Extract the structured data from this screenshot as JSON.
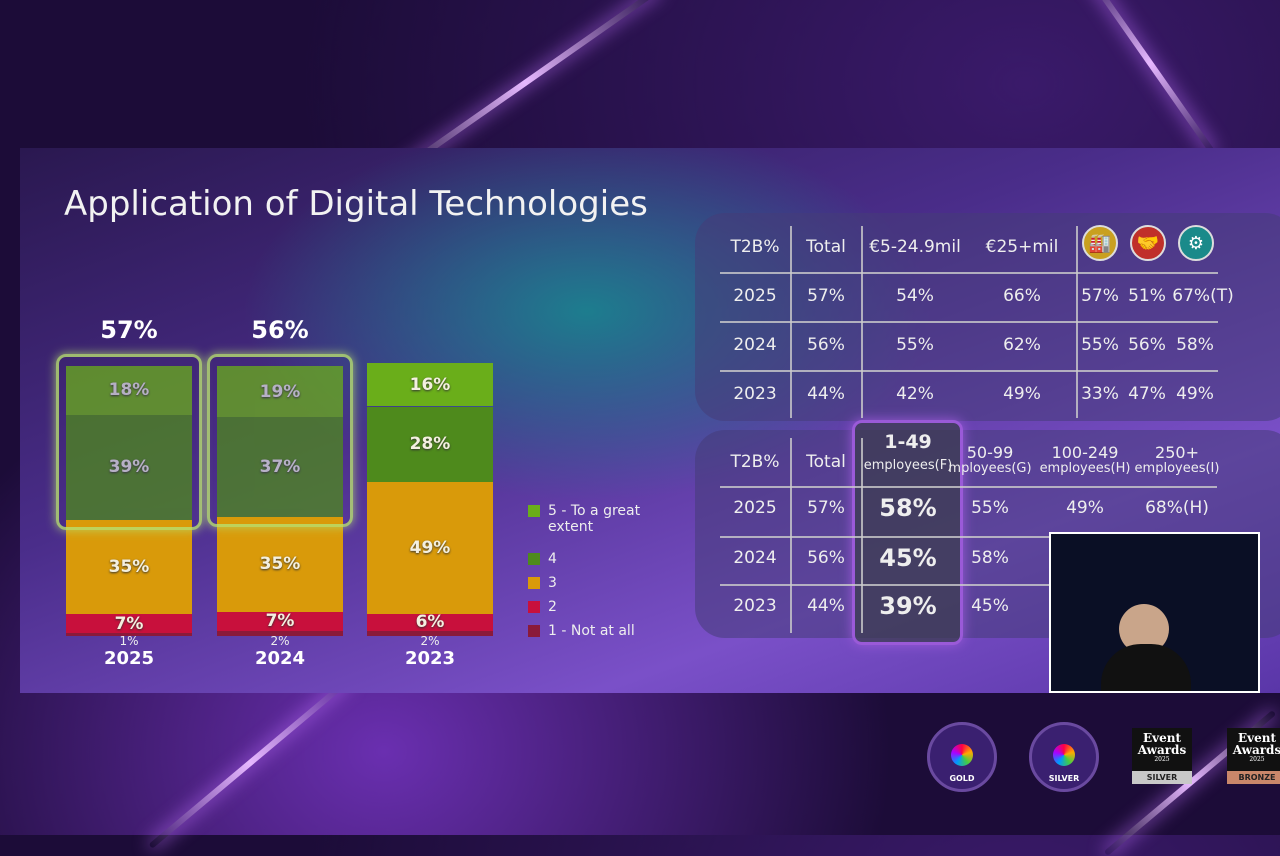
{
  "slide": {
    "title": "Application of Digital Technologies"
  },
  "chart_data": {
    "type": "bar",
    "stacked": true,
    "categories": [
      "2025",
      "2024",
      "2023"
    ],
    "series": [
      {
        "name": "1 - Not at all",
        "color": "#8a1a3a",
        "values": [
          1,
          2,
          2
        ]
      },
      {
        "name": "2",
        "color": "#c8103c",
        "values": [
          7,
          7,
          6
        ]
      },
      {
        "name": "3",
        "color": "#d99a0a",
        "values": [
          35,
          35,
          49
        ]
      },
      {
        "name": "4",
        "color": "#4e8a1c",
        "values": [
          39,
          37,
          28
        ]
      },
      {
        "name": "5 - To a great extent",
        "color": "#6aae1a",
        "values": [
          18,
          19,
          16
        ]
      }
    ],
    "value_labels": [
      [
        "1%",
        "7%",
        "35%",
        "39%",
        "18%"
      ],
      [
        "2%",
        "7%",
        "35%",
        "37%",
        "19%"
      ],
      [
        "2%",
        "6%",
        "49%",
        "28%",
        "16%"
      ]
    ],
    "top2box_labels": [
      "57%",
      "56%",
      ""
    ],
    "legend_order": [
      4,
      3,
      2,
      1,
      0
    ],
    "legend": "right"
  },
  "table1": {
    "headers": [
      "T2B%",
      "Total",
      "€5-24.9mil",
      "€25+mil"
    ],
    "icons": [
      "factory-icon",
      "handshake-icon",
      "service-gear-hand-icon"
    ],
    "rows": [
      [
        "2025",
        "57%",
        "54%",
        "66%",
        "57%",
        "51%",
        "67%(T)"
      ],
      [
        "2024",
        "56%",
        "55%",
        "62%",
        "55%",
        "56%",
        "58%"
      ],
      [
        "2023",
        "44%",
        "42%",
        "49%",
        "33%",
        "47%",
        "49%"
      ]
    ]
  },
  "table2": {
    "headers": [
      [
        "T2B%",
        ""
      ],
      [
        "Total",
        ""
      ],
      [
        "1-49",
        "employees(F)"
      ],
      [
        "50-99",
        "mployees(G)"
      ],
      [
        "100-249",
        "employees(H)"
      ],
      [
        "250+",
        "employees(I)"
      ]
    ],
    "rows": [
      [
        "2025",
        "57%",
        "58%",
        "55%",
        "49%",
        "68%(H)"
      ],
      [
        "2024",
        "56%",
        "45%",
        "58%",
        "",
        ""
      ],
      [
        "2023",
        "44%",
        "39%",
        "45%",
        "",
        ""
      ]
    ]
  },
  "awards": [
    {
      "ring": "GOLD"
    },
    {
      "ring": "SILVER"
    },
    {
      "title": "Event Awards",
      "year": "2025",
      "tier": "SILVER",
      "color": "#c8c8c8"
    },
    {
      "title": "Event Awards",
      "year": "2025",
      "tier": "BRONZE",
      "color": "#c9876a"
    }
  ]
}
